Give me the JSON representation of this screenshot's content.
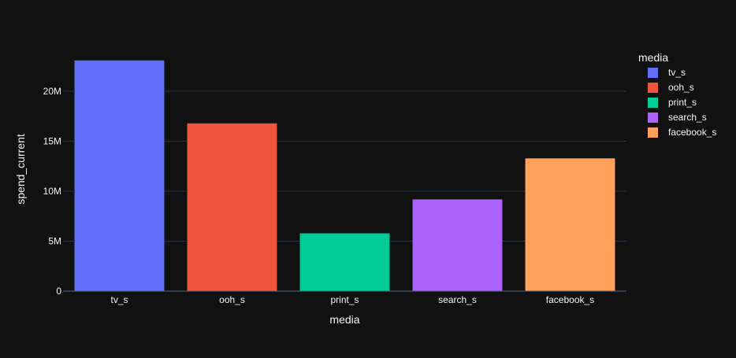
{
  "chart_data": {
    "type": "bar",
    "categories": [
      "tv_s",
      "ooh_s",
      "print_s",
      "search_s",
      "facebook_s"
    ],
    "values": [
      23100000,
      16800000,
      5800000,
      9200000,
      13300000
    ],
    "colors": [
      "#636efa",
      "#ef553b",
      "#00cc96",
      "#ab63fa",
      "#ffa15a"
    ],
    "xlabel": "media",
    "ylabel": "spend_current",
    "ylim": [
      0,
      24400000
    ],
    "yticks": [
      0,
      5000000,
      10000000,
      15000000,
      20000000
    ],
    "ytick_labels": [
      "0",
      "5M",
      "10M",
      "15M",
      "20M"
    ],
    "grid": true,
    "legend": {
      "title": "media",
      "placement": "right",
      "entries": [
        "tv_s",
        "ooh_s",
        "print_s",
        "search_s",
        "facebook_s"
      ]
    }
  }
}
